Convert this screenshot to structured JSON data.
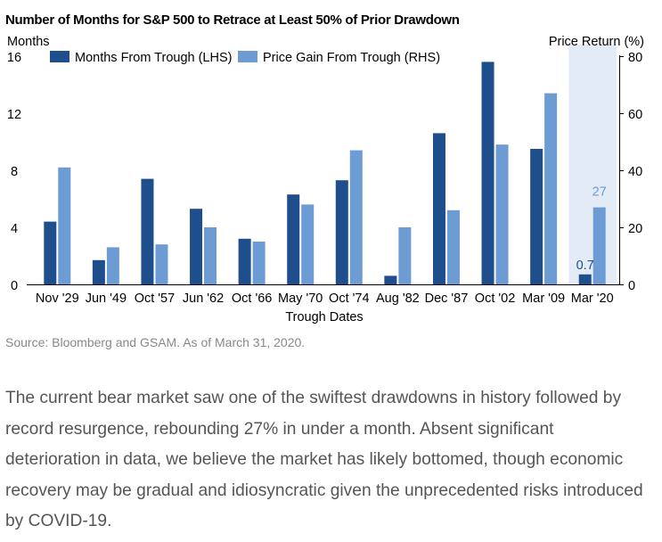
{
  "chart_data": {
    "type": "bar",
    "title": "Number of Months for S&P 500 to Retrace at Least 50% of Prior Drawdown",
    "ylabel_left": "Months",
    "ylabel_right": "Price Return (%)",
    "xlabel": "Trough Dates",
    "categories": [
      "Nov '29",
      "Jun '49",
      "Oct '57",
      "Jun '62",
      "Oct '66",
      "May '70",
      "Oct '74",
      "Aug '82",
      "Dec '87",
      "Oct '02",
      "Mar '09",
      "Mar '20"
    ],
    "series": [
      {
        "name": "Months From Trough (LHS)",
        "axis": "left",
        "color": "#1f4e8c",
        "values": [
          4.4,
          1.7,
          7.4,
          5.3,
          3.2,
          6.3,
          7.3,
          0.6,
          10.6,
          15.6,
          9.5,
          0.7
        ]
      },
      {
        "name": "Price Gain From Trough (RHS)",
        "axis": "right",
        "color": "#6d9bd4",
        "values": [
          41,
          13,
          14,
          20,
          15,
          28,
          47,
          20,
          26,
          49,
          67,
          27
        ]
      }
    ],
    "ylim_left": [
      0,
      16
    ],
    "yticks_left": [
      "0",
      "4",
      "8",
      "12",
      "16"
    ],
    "ylim_right": [
      0,
      80
    ],
    "yticks_right": [
      "0",
      "20",
      "40",
      "60",
      "80"
    ],
    "annotations": [
      {
        "category": "Mar '20",
        "series": "Months From Trough (LHS)",
        "label": "0.7"
      },
      {
        "category": "Mar '20",
        "series": "Price Gain From Trough (RHS)",
        "label": "27"
      }
    ],
    "highlight_category": "Mar '20",
    "highlight_color": "#e3ecf6",
    "legend_position": "top-left",
    "grid": false
  },
  "source": "Source: Bloomberg and GSAM. As of March 31, 2020.",
  "body_text": "The current bear market saw one of the swiftest drawdowns in history followed by record resurgence, rebounding 27% in under a month. Absent significant deterioration in data, we believe the market has likely bottomed, though economic recovery may be gradual and idiosyncratic given the unprecedented risks introduced by COVID-19."
}
